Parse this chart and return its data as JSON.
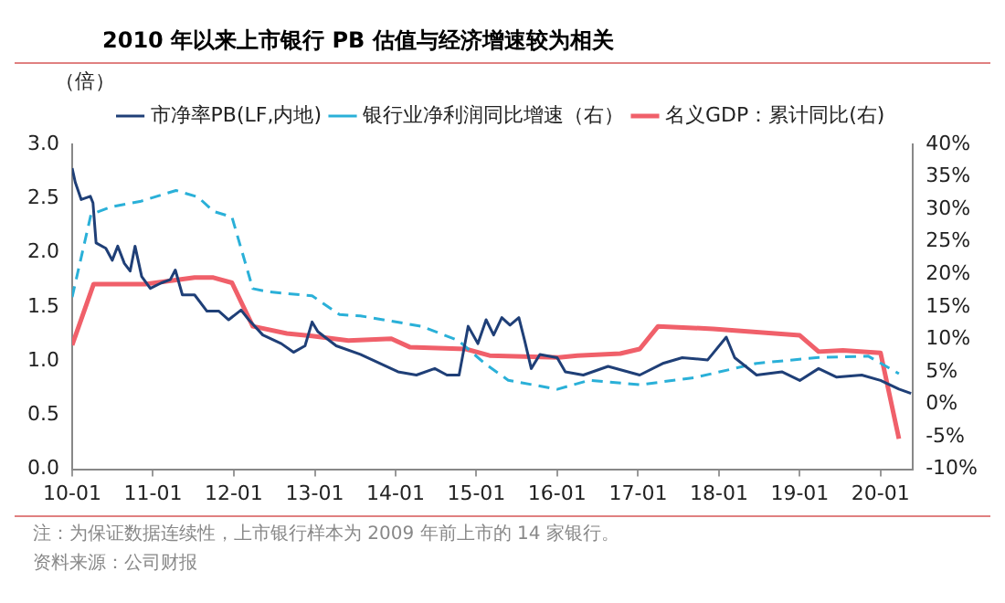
{
  "chart_data": {
    "type": "line",
    "title": "2010 年以来上市银行 PB 估值与经济增速较为相关",
    "ylabel": "（倍）",
    "xlim": [
      "2010-01-01",
      "2020-05-26"
    ],
    "xticks": [
      {
        "value": "2010-01",
        "label": "10-01"
      },
      {
        "value": "2011-01",
        "label": "11-01"
      },
      {
        "value": "2012-01",
        "label": "12-01"
      },
      {
        "value": "2013-01",
        "label": "13-01"
      },
      {
        "value": "2014-01",
        "label": "14-01"
      },
      {
        "value": "2015-01",
        "label": "15-01"
      },
      {
        "value": "2016-01",
        "label": "16-01"
      },
      {
        "value": "2017-01",
        "label": "17-01"
      },
      {
        "value": "2018-01",
        "label": "18-01"
      },
      {
        "value": "2019-01",
        "label": "19-01"
      },
      {
        "value": "2020-01",
        "label": "20-01"
      }
    ],
    "ylim": [
      0,
      3
    ],
    "yticks": [
      {
        "value": 0,
        "label": "0.0"
      },
      0.5,
      {
        "value": 1,
        "label": "1.0"
      },
      1.5,
      {
        "value": 2,
        "label": "2.0"
      },
      2.5,
      {
        "value": 3,
        "label": "3.0"
      }
    ],
    "y2lim": [
      -10,
      40
    ],
    "y2ticks": [
      {
        "value": -10,
        "label": "-10%"
      },
      {
        "value": -5,
        "label": "-5%"
      },
      {
        "value": 0,
        "label": "0%"
      },
      {
        "value": 5,
        "label": "5%"
      },
      {
        "value": 10,
        "label": "10%"
      },
      {
        "value": 15,
        "label": "15%"
      },
      {
        "value": 20,
        "label": "20%"
      },
      {
        "value": 25,
        "label": "25%"
      },
      {
        "value": 30,
        "label": "30%"
      },
      {
        "value": 35,
        "label": "35%"
      },
      {
        "value": 40,
        "label": "40%"
      }
    ],
    "legend": "top",
    "marker": "none",
    "series": [
      {
        "name": "市净率PB(LF,内地)",
        "color": "#1f3f77",
        "line_style": "solid",
        "x": [
          "2010-01-01",
          "2010-01-15",
          "2010-02-11",
          "2010-03-24",
          "2010-04-05",
          "2010-04-19",
          "2010-06-02",
          "2010-07-01",
          "2010-07-26",
          "2010-08-25",
          "2010-09-20",
          "2010-10-12",
          "2010-11-11",
          "2010-12-20",
          "2011-02-07",
          "2011-03-20",
          "2011-04-12",
          "2011-05-14",
          "2011-07-08",
          "2011-09-02",
          "2011-10-26",
          "2011-12-09",
          "2012-02-03",
          "2012-03-09",
          "2012-05-11",
          "2012-08-03",
          "2012-09-27",
          "2012-11-18",
          "2012-12-20",
          "2013-01-15",
          "2013-04-08",
          "2013-07-26",
          "2013-10-19",
          "2014-01-12",
          "2014-04-05",
          "2014-06-27",
          "2014-08-21",
          "2014-10-15",
          "2014-11-25",
          "2015-01-08",
          "2015-02-14",
          "2015-03-20",
          "2015-04-26",
          "2015-06-02",
          "2015-07-12",
          "2015-08-07",
          "2015-09-06",
          "2015-10-15",
          "2016-01-01",
          "2016-02-07",
          "2016-04-28",
          "2016-08-18",
          "2017-01-08",
          "2017-04-26",
          "2017-07-19",
          "2017-11-11",
          "2018-02-03",
          "2018-03-13",
          "2018-06-20",
          "2018-10-12",
          "2019-01-01",
          "2019-03-27",
          "2019-06-17",
          "2019-10-08",
          "2020-01-01",
          "2020-03-24",
          "2020-05-18"
        ],
        "values": [
          2.78,
          2.65,
          2.49,
          2.52,
          2.46,
          2.09,
          2.04,
          1.93,
          2.06,
          1.9,
          1.83,
          2.06,
          1.78,
          1.67,
          1.72,
          1.75,
          1.84,
          1.61,
          1.61,
          1.46,
          1.46,
          1.38,
          1.47,
          1.38,
          1.24,
          1.16,
          1.08,
          1.14,
          1.36,
          1.27,
          1.14,
          1.06,
          0.98,
          0.9,
          0.87,
          0.93,
          0.87,
          0.87,
          1.32,
          1.16,
          1.38,
          1.24,
          1.4,
          1.33,
          1.4,
          1.19,
          0.93,
          1.06,
          1.03,
          0.9,
          0.87,
          0.95,
          0.87,
          0.98,
          1.03,
          1.01,
          1.22,
          1.03,
          0.87,
          0.9,
          0.82,
          0.93,
          0.85,
          0.87,
          0.82,
          0.74,
          0.7
        ]
      },
      {
        "name": "银行业净利润同比增速（右）",
        "color": "#2ab0d8",
        "line_style": "dashed",
        "axis": "y2",
        "x": [
          "2010-01-01",
          "2010-03-27",
          "2010-06-27",
          "2010-11-03",
          "2011-04-15",
          "2011-07-23",
          "2011-10-01",
          "2011-12-24",
          "2012-03-27",
          "2012-06-06",
          "2012-12-20",
          "2013-04-23",
          "2013-07-26",
          "2014-04-28",
          "2014-10-12",
          "2015-02-07",
          "2015-05-25",
          "2016-01-01",
          "2016-05-25",
          "2017-01-08",
          "2017-09-13",
          "2018-06-20",
          "2019-03-27",
          "2019-11-07",
          "2020-03-24"
        ],
        "values": [
          16.5,
          29.2,
          30.4,
          31.2,
          32.9,
          31.9,
          29.7,
          28.8,
          17.8,
          17.3,
          16.7,
          13.8,
          13.6,
          12,
          9.8,
          6.3,
          3.7,
          2.3,
          3.7,
          3,
          4.1,
          6.3,
          7.2,
          7.4,
          4.7
        ]
      },
      {
        "name": "名义GDP：累计同比(右)",
        "color": "#f0606a",
        "line_style": "solid",
        "axis": "y2",
        "x": [
          "2010-01-01",
          "2010-04-08",
          "2010-11-28",
          "2011-07-08",
          "2011-10-01",
          "2011-12-24",
          "2012-03-27",
          "2012-08-28",
          "2012-12-20",
          "2013-06-02",
          "2013-12-13",
          "2014-03-06",
          "2014-11-14",
          "2015-03-02",
          "2016-01-08",
          "2016-04-01",
          "2016-10-12",
          "2017-01-08",
          "2017-04-01",
          "2017-12-06",
          "2019-01-01",
          "2019-03-27",
          "2019-07-15",
          "2020-01-01",
          "2020-03-24"
        ],
        "values": [
          9.1,
          18.5,
          18.5,
          19.5,
          19.5,
          18.7,
          12,
          10.9,
          10.5,
          9.8,
          10.1,
          8.8,
          8.5,
          7.5,
          7.2,
          7.5,
          7.8,
          8.5,
          12,
          11.6,
          10.6,
          8.1,
          8.3,
          7.9,
          -5.3
        ]
      }
    ],
    "annotations": [
      "注：为保证数据连续性，上市银行样本为 2009 年前上市的 14 家银行。",
      "资料来源：公司财报"
    ]
  }
}
